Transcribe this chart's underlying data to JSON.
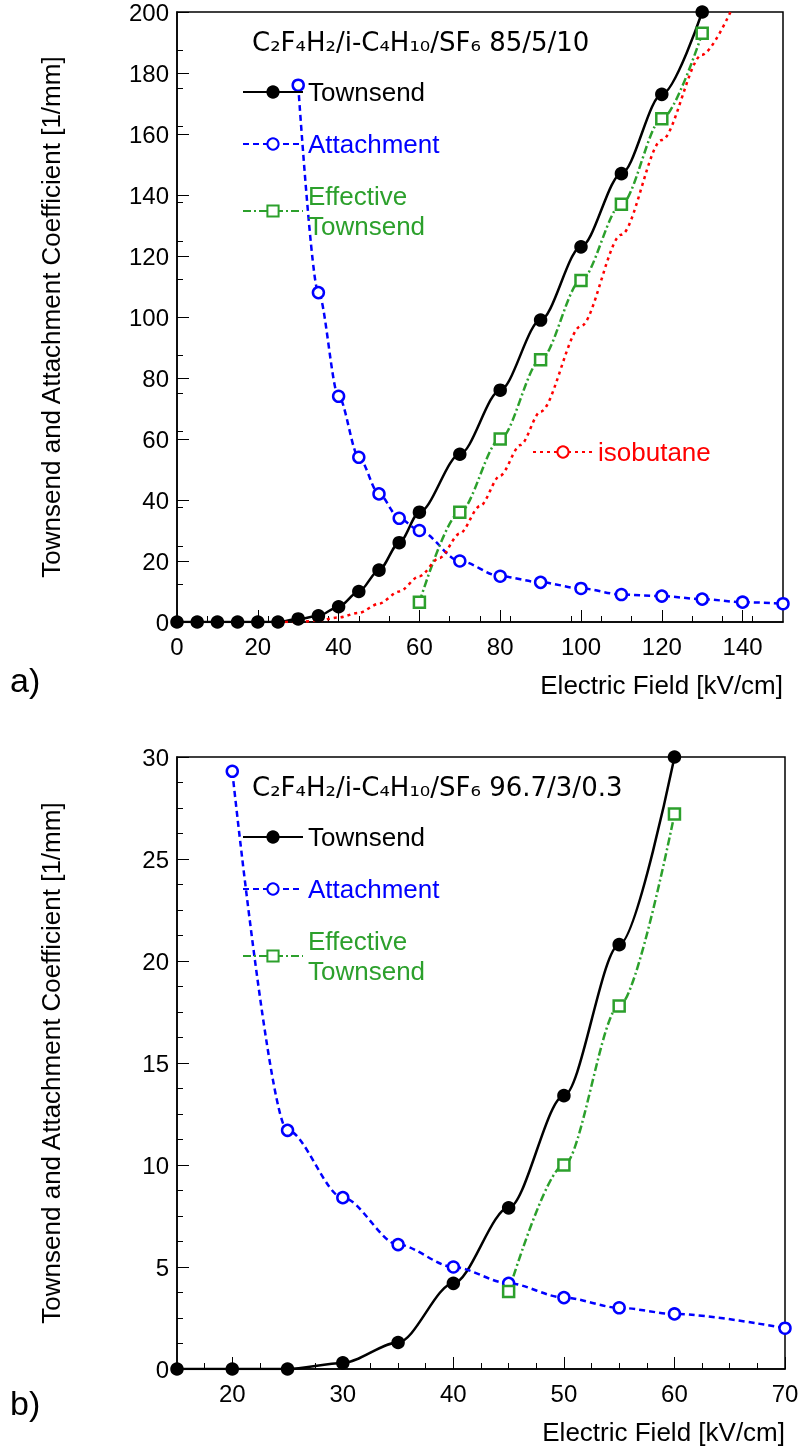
{
  "chart_data": [
    {
      "type": "line",
      "title": "C₂F₄H₂/i-C₄H₁₀/SF₆ 85/5/10",
      "xlabel": "Electric Field [kV/cm]",
      "ylabel": "Townsend and Attachment Coefficient [1/mm]",
      "annotations": [
        "a)"
      ],
      "xlim": [
        0,
        150
      ],
      "ylim": [
        0,
        200
      ],
      "xticks": [
        0,
        20,
        40,
        60,
        80,
        100,
        120,
        140
      ],
      "yticks": [
        0,
        20,
        40,
        60,
        80,
        100,
        120,
        140,
        160,
        180,
        200
      ],
      "grid": false,
      "legend": "top left",
      "series": [
        {
          "name": "Townsend",
          "color": "#000000",
          "marker": "circle",
          "line_style": "solid",
          "x": [
            0,
            5,
            10,
            15,
            20,
            25,
            30,
            35,
            40,
            45,
            50,
            55,
            60,
            70,
            80,
            90,
            100,
            110,
            120,
            130
          ],
          "values": [
            0,
            0,
            0,
            0,
            0,
            0,
            1,
            2,
            5,
            10,
            17,
            26,
            36,
            55,
            76,
            99,
            123,
            147,
            173,
            200
          ]
        },
        {
          "name": "Attachment",
          "color": "#0000ff",
          "marker": "circle",
          "line_style": "dashed",
          "x": [
            30,
            35,
            40,
            45,
            50,
            55,
            60,
            70,
            80,
            90,
            100,
            110,
            120,
            130,
            140,
            150
          ],
          "values": [
            176,
            108,
            74,
            54,
            42,
            34,
            30,
            20,
            15,
            13,
            11,
            9,
            8.5,
            7.5,
            6.5,
            6
          ]
        },
        {
          "name": "Effective Townsend",
          "color": "#2ca02c",
          "marker": "square",
          "line_style": "dashdot",
          "x": [
            60,
            70,
            80,
            90,
            100,
            110,
            120,
            130
          ],
          "values": [
            6.5,
            36,
            60,
            86,
            112,
            137,
            165,
            193
          ]
        },
        {
          "name": "isobutane",
          "color": "#ff0000",
          "marker": "none",
          "line_style": "dotted",
          "x": [
            25,
            30,
            35,
            40,
            45,
            50,
            55,
            60,
            65,
            70,
            75,
            80,
            85,
            90,
            100,
            110,
            120,
            130,
            137
          ],
          "values": [
            0,
            0,
            0.5,
            1.5,
            3,
            6,
            10,
            15,
            21,
            29,
            38,
            48,
            58,
            69,
            97,
            127,
            158,
            186,
            200
          ]
        }
      ]
    },
    {
      "type": "line",
      "title": "C₂F₄H₂/i-C₄H₁₀/SF₆ 96.7/3/0.3",
      "xlabel": "Electric Field [kV/cm]",
      "ylabel": "Townsend and Attachment Coefficient [1/mm]",
      "annotations": [
        "b)"
      ],
      "xlim": [
        15,
        70
      ],
      "ylim": [
        0,
        30
      ],
      "xticks": [
        20,
        30,
        40,
        50,
        60,
        70
      ],
      "yticks": [
        0,
        5,
        10,
        15,
        20,
        25,
        30
      ],
      "grid": false,
      "legend": "top left",
      "series": [
        {
          "name": "Townsend",
          "color": "#000000",
          "marker": "circle",
          "line_style": "solid",
          "x": [
            15,
            20,
            25,
            30,
            35,
            40,
            45,
            50,
            55,
            60
          ],
          "values": [
            0,
            0,
            0,
            0.3,
            1.3,
            4.2,
            7.9,
            13.4,
            20.8,
            30
          ]
        },
        {
          "name": "Attachment",
          "color": "#0000ff",
          "marker": "circle",
          "line_style": "dashed",
          "x": [
            20,
            25,
            30,
            35,
            40,
            45,
            50,
            55,
            60,
            70
          ],
          "values": [
            29.3,
            11.7,
            8.4,
            6.1,
            5,
            4.2,
            3.5,
            3,
            2.7,
            2
          ]
        },
        {
          "name": "Effective Townsend",
          "color": "#2ca02c",
          "marker": "square",
          "line_style": "dashdot",
          "x": [
            45,
            50,
            55,
            60
          ],
          "values": [
            3.8,
            10,
            17.8,
            27.2
          ]
        }
      ]
    }
  ]
}
